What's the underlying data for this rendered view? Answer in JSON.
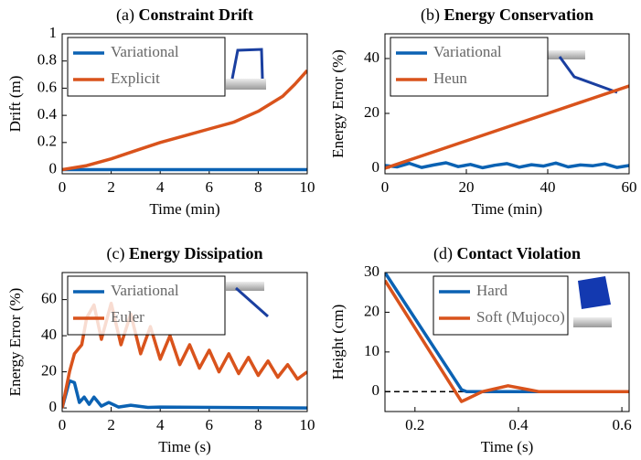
{
  "chart_data": [
    {
      "type": "line",
      "label": "(a)",
      "title": "Constraint Drift",
      "x_label": "Time (min)",
      "y_label": "Drift (m)",
      "xlim": [
        0,
        10
      ],
      "ylim": [
        -0.03,
        1
      ],
      "xticks": [
        0,
        2,
        4,
        6,
        8,
        10
      ],
      "yticks": [
        0,
        0.2,
        0.4,
        0.6,
        0.8,
        1
      ],
      "legend": "upper left",
      "series": [
        {
          "name": "Variational",
          "color": "#0b62b3",
          "x": [
            0,
            10
          ],
          "values": [
            0,
            0
          ]
        },
        {
          "name": "Explicit",
          "color": "#d9531c",
          "x": [
            0,
            1,
            2,
            3,
            4,
            5,
            6,
            7,
            8,
            9,
            9.5,
            10
          ],
          "values": [
            0,
            0.03,
            0.08,
            0.14,
            0.2,
            0.25,
            0.3,
            0.35,
            0.43,
            0.54,
            0.63,
            0.73
          ]
        }
      ]
    },
    {
      "type": "line",
      "label": "(b)",
      "title": "Energy Conservation",
      "x_label": "Time (min)",
      "y_label": "Energy Error (%)",
      "xlim": [
        0,
        60
      ],
      "ylim": [
        -2,
        49
      ],
      "xticks": [
        0,
        20,
        40,
        60
      ],
      "yticks": [
        0,
        20,
        40
      ],
      "legend": "upper left",
      "series": [
        {
          "name": "Variational",
          "color": "#0b62b3",
          "x": [
            0,
            3,
            6,
            9,
            12,
            15,
            18,
            21,
            24,
            27,
            30,
            33,
            36,
            39,
            42,
            45,
            48,
            51,
            54,
            57,
            60
          ],
          "values": [
            1,
            0.5,
            1.8,
            0.3,
            1.2,
            2,
            0.6,
            1.4,
            0.2,
            1.1,
            1.7,
            0.4,
            1.3,
            0.8,
            1.9,
            0.5,
            1.2,
            0.9,
            1.6,
            0.3,
            1
          ]
        },
        {
          "name": "Heun",
          "color": "#d9531c",
          "x": [
            0,
            10,
            20,
            30,
            40,
            50,
            60
          ],
          "values": [
            0,
            5,
            10,
            15,
            20,
            25,
            30
          ]
        }
      ]
    },
    {
      "type": "line",
      "label": "(c)",
      "title": "Energy Dissipation",
      "x_label": "Time (s)",
      "y_label": "Energy Error (%)",
      "xlim": [
        0,
        10
      ],
      "ylim": [
        -2,
        75
      ],
      "xticks": [
        0,
        2,
        4,
        6,
        8,
        10
      ],
      "yticks": [
        0,
        20,
        40,
        60
      ],
      "legend": "upper left",
      "series": [
        {
          "name": "Variational",
          "color": "#0b62b3",
          "x": [
            0,
            0.3,
            0.5,
            0.7,
            0.9,
            1.1,
            1.3,
            1.6,
            1.9,
            2.3,
            2.8,
            3.5,
            4,
            10
          ],
          "values": [
            0,
            15,
            14,
            3,
            6,
            2,
            6,
            1,
            3,
            0.5,
            1.5,
            0.3,
            0.5,
            0
          ]
        },
        {
          "name": "Euler",
          "color": "#d9531c",
          "x": [
            0,
            0.3,
            0.5,
            0.8,
            1,
            1.3,
            1.6,
            2,
            2.4,
            2.8,
            3.2,
            3.6,
            4,
            4.4,
            4.8,
            5.2,
            5.6,
            6,
            6.4,
            6.8,
            7.2,
            7.6,
            8,
            8.4,
            8.8,
            9.2,
            9.6,
            10
          ],
          "values": [
            0,
            20,
            30,
            35,
            50,
            57,
            38,
            58,
            35,
            52,
            30,
            45,
            27,
            40,
            24,
            35,
            22,
            32,
            20,
            30,
            19,
            28,
            18,
            26,
            17,
            24,
            16,
            20
          ]
        }
      ]
    },
    {
      "type": "line",
      "label": "(d)",
      "title": "Contact Violation",
      "x_label": "Time (s)",
      "y_label": "Height (cm)",
      "xlim": [
        0.142,
        0.614
      ],
      "ylim": [
        -5,
        30
      ],
      "xticks": [
        0.2,
        0.4,
        0.6
      ],
      "yticks": [
        0,
        10,
        20,
        30
      ],
      "legend": "upper right",
      "series": [
        {
          "name": "Hard",
          "color": "#0b62b3",
          "x": [
            0.142,
            0.29,
            0.3,
            0.614
          ],
          "values": [
            30,
            0.5,
            0,
            0
          ]
        },
        {
          "name": "Soft (Mujoco)",
          "color": "#d9531c",
          "x": [
            0.142,
            0.29,
            0.33,
            0.38,
            0.42,
            0.44,
            0.614
          ],
          "values": [
            28,
            -2.5,
            0,
            1.5,
            0.5,
            0,
            0
          ]
        }
      ]
    }
  ]
}
